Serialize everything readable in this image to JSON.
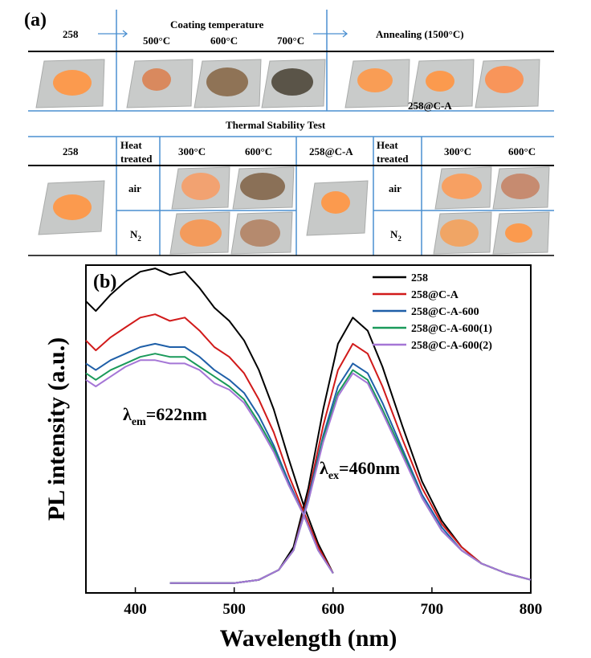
{
  "panel_a": {
    "letter": "(a)",
    "top_row": {
      "c1": "258",
      "coating": "Coating temperature",
      "t500": "500°C",
      "t600": "600°C",
      "t700": "700°C",
      "annealing": "Annealing  (1500°C)",
      "photo_caption": "258@C-A"
    },
    "thermal": {
      "title": "Thermal Stability Test",
      "left_sample": "258",
      "right_sample": "258@C-A",
      "heat": "Heat",
      "treated": "treated",
      "t300": "300°C",
      "t600": "600°C",
      "air": "air",
      "n2_main": "N",
      "n2_sub": "2"
    },
    "colors": {
      "grid_line": "#4a8fd0",
      "bar_line": "#000000",
      "orange_powder": "#fb9a4e",
      "brown_powder": "#8f7356",
      "dark_powder": "#5a5448",
      "tan_powder": "#b58a6e",
      "plate": "#c7c9c8"
    }
  },
  "chart_data": {
    "type": "line",
    "panel_label": "(b)",
    "xlabel": "Wavelength (nm)",
    "ylabel": "PL intensity (a.u.)",
    "xlim": [
      350,
      800
    ],
    "ylim": [
      0,
      1
    ],
    "x_ticks": [
      400,
      500,
      600,
      700,
      800
    ],
    "y_ticks_visible": false,
    "grid": false,
    "legend_position": "top-right",
    "annotations": {
      "em_main": "λ",
      "em_sub": "em",
      "em_rest": "=622nm",
      "ex_main": "λ",
      "ex_sub": "ex",
      "ex_rest": "=460nm"
    },
    "series": [
      {
        "name": "258",
        "color": "#000000",
        "excitation": {
          "x": [
            350,
            360,
            375,
            390,
            405,
            420,
            435,
            450,
            465,
            480,
            495,
            510,
            525,
            540,
            555,
            570,
            585,
            600
          ],
          "y": [
            0.89,
            0.86,
            0.91,
            0.95,
            0.98,
            0.99,
            0.97,
            0.98,
            0.93,
            0.87,
            0.83,
            0.77,
            0.68,
            0.56,
            0.41,
            0.27,
            0.15,
            0.06
          ]
        },
        "emission": {
          "x": [
            435,
            500,
            525,
            545,
            560,
            575,
            590,
            605,
            620,
            635,
            650,
            670,
            690,
            710,
            730,
            750,
            775,
            800
          ],
          "y": [
            0.03,
            0.03,
            0.04,
            0.07,
            0.14,
            0.32,
            0.56,
            0.76,
            0.84,
            0.8,
            0.69,
            0.51,
            0.34,
            0.22,
            0.14,
            0.09,
            0.06,
            0.04
          ]
        }
      },
      {
        "name": "258@C-A",
        "color": "#d11a1a",
        "excitation": {
          "x": [
            350,
            360,
            375,
            390,
            405,
            420,
            435,
            450,
            465,
            480,
            495,
            510,
            525,
            540,
            555,
            570,
            585,
            600
          ],
          "y": [
            0.77,
            0.74,
            0.78,
            0.81,
            0.84,
            0.85,
            0.83,
            0.84,
            0.8,
            0.75,
            0.72,
            0.67,
            0.59,
            0.49,
            0.36,
            0.25,
            0.14,
            0.06
          ]
        },
        "emission": {
          "x": [
            435,
            500,
            525,
            545,
            560,
            575,
            590,
            605,
            620,
            635,
            650,
            670,
            690,
            710,
            730,
            750,
            775,
            800
          ],
          "y": [
            0.03,
            0.03,
            0.04,
            0.07,
            0.13,
            0.3,
            0.51,
            0.68,
            0.76,
            0.73,
            0.63,
            0.47,
            0.32,
            0.21,
            0.14,
            0.09,
            0.06,
            0.04
          ]
        }
      },
      {
        "name": "258@C-A-600",
        "color": "#1f5fa8",
        "excitation": {
          "x": [
            350,
            360,
            375,
            390,
            405,
            420,
            435,
            450,
            465,
            480,
            495,
            510,
            525,
            540,
            555,
            570,
            585,
            600
          ],
          "y": [
            0.7,
            0.68,
            0.71,
            0.73,
            0.75,
            0.76,
            0.75,
            0.75,
            0.72,
            0.68,
            0.65,
            0.61,
            0.54,
            0.45,
            0.34,
            0.24,
            0.13,
            0.06
          ]
        },
        "emission": {
          "x": [
            435,
            500,
            525,
            545,
            560,
            575,
            590,
            605,
            620,
            635,
            650,
            670,
            690,
            710,
            730,
            750,
            775,
            800
          ],
          "y": [
            0.03,
            0.03,
            0.04,
            0.07,
            0.13,
            0.29,
            0.48,
            0.63,
            0.7,
            0.67,
            0.58,
            0.44,
            0.3,
            0.2,
            0.13,
            0.09,
            0.06,
            0.04
          ]
        }
      },
      {
        "name": "258@C-A-600(1)",
        "color": "#1a9a5a",
        "excitation": {
          "x": [
            350,
            360,
            375,
            390,
            405,
            420,
            435,
            450,
            465,
            480,
            495,
            510,
            525,
            540,
            555,
            570,
            585,
            600
          ],
          "y": [
            0.67,
            0.65,
            0.68,
            0.7,
            0.72,
            0.73,
            0.72,
            0.72,
            0.69,
            0.66,
            0.63,
            0.59,
            0.52,
            0.44,
            0.33,
            0.24,
            0.13,
            0.06
          ]
        },
        "emission": {
          "x": [
            435,
            500,
            525,
            545,
            560,
            575,
            590,
            605,
            620,
            635,
            650,
            670,
            690,
            710,
            730,
            750,
            775,
            800
          ],
          "y": [
            0.03,
            0.03,
            0.04,
            0.07,
            0.13,
            0.28,
            0.47,
            0.61,
            0.68,
            0.65,
            0.56,
            0.43,
            0.29,
            0.19,
            0.13,
            0.09,
            0.06,
            0.04
          ]
        }
      },
      {
        "name": "258@C-A-600(2)",
        "color": "#a576d6",
        "excitation": {
          "x": [
            350,
            360,
            375,
            390,
            405,
            420,
            435,
            450,
            465,
            480,
            495,
            510,
            525,
            540,
            555,
            570,
            585,
            600
          ],
          "y": [
            0.65,
            0.63,
            0.66,
            0.69,
            0.71,
            0.71,
            0.7,
            0.7,
            0.68,
            0.64,
            0.62,
            0.58,
            0.51,
            0.43,
            0.33,
            0.24,
            0.13,
            0.06
          ]
        },
        "emission": {
          "x": [
            435,
            500,
            525,
            545,
            560,
            575,
            590,
            605,
            620,
            635,
            650,
            670,
            690,
            710,
            730,
            750,
            775,
            800
          ],
          "y": [
            0.03,
            0.03,
            0.04,
            0.07,
            0.13,
            0.28,
            0.46,
            0.6,
            0.67,
            0.64,
            0.55,
            0.42,
            0.29,
            0.19,
            0.13,
            0.09,
            0.06,
            0.04
          ]
        }
      }
    ]
  }
}
